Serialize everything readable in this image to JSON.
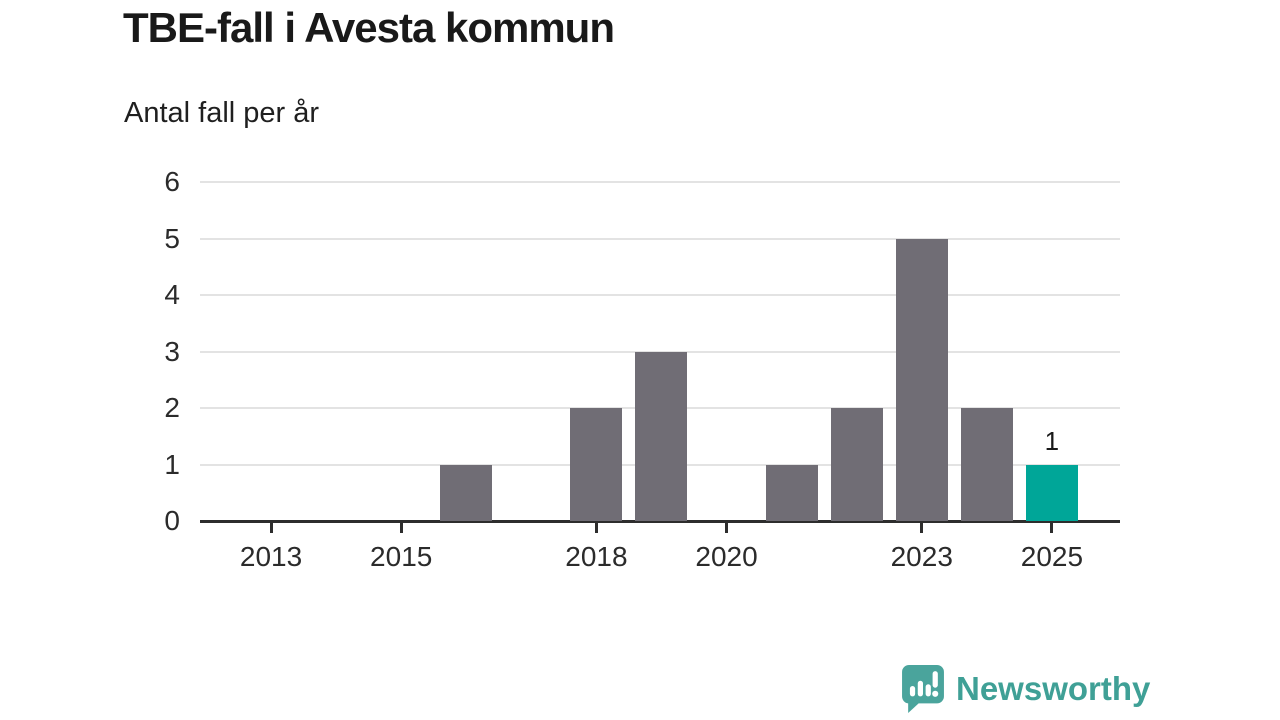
{
  "header": {
    "title": "TBE-fall i Avesta kommun",
    "subtitle": "Antal fall per år"
  },
  "chart_data": {
    "type": "bar",
    "title": "TBE-fall i Avesta kommun",
    "subtitle": "Antal fall per år",
    "ylabel": "Antal fall per år",
    "xlabel": "",
    "categories": [
      2012,
      2013,
      2014,
      2015,
      2016,
      2017,
      2018,
      2019,
      2020,
      2021,
      2022,
      2023,
      2024,
      2025
    ],
    "values": [
      0,
      0,
      0,
      0,
      1,
      0,
      2,
      3,
      0,
      1,
      2,
      5,
      2,
      1
    ],
    "ylim": [
      0,
      6
    ],
    "yticks": [
      0,
      1,
      2,
      3,
      4,
      5,
      6
    ],
    "xticks": [
      2013,
      2015,
      2018,
      2020,
      2023,
      2025
    ],
    "grid": "horizontal",
    "legend": "none",
    "bar_color": "#706d75",
    "highlight_color": "#00a698",
    "highlight_category": 2025,
    "data_labels": [
      {
        "category": 2025,
        "value": 1,
        "text": "1"
      }
    ]
  },
  "footer": {
    "brand": "Newsworthy",
    "brand_color": "#3fa096",
    "logo_icon": "bar-chart-speech-bubble-icon",
    "logo_color": "#4aa49c"
  }
}
